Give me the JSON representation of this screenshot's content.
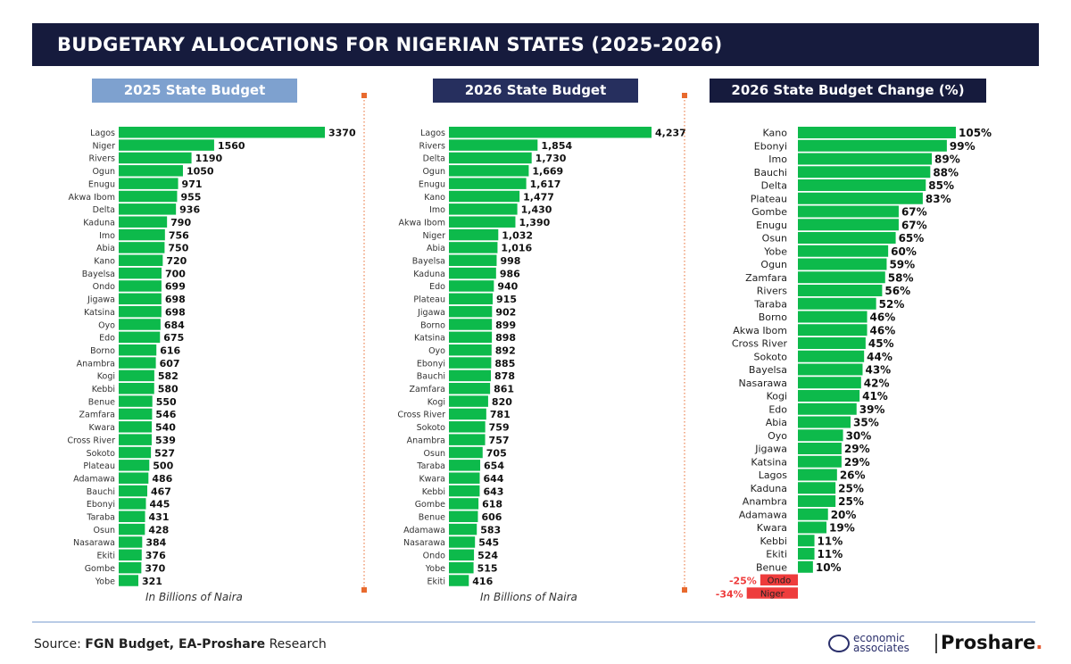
{
  "title": "BUDGETARY ALLOCATIONS FOR NIGERIAN STATES (2025-2026)",
  "source_prefix": "Source: ",
  "source_bold": "FGN Budget, EA-Proshare",
  "source_suffix": " Research",
  "logos": {
    "ea_line1": "economic",
    "ea_line2": "associates",
    "proshare": "Proshare",
    "proshare_dot": "."
  },
  "colors": {
    "bar": "#0dba4b",
    "negative": "#ee3c3c",
    "title_bg": "#161b3d",
    "head_2025": "#7ea1cf",
    "head_2026": "#262f5e",
    "divider": "#e86a2e"
  },
  "chart_data": [
    {
      "type": "bar",
      "orientation": "horizontal",
      "title": "2025 State Budget",
      "unit_label": "In Billions of Naira",
      "categories": [
        "Lagos",
        "Niger",
        "Rivers",
        "Ogun",
        "Enugu",
        "Akwa Ibom",
        "Delta",
        "Kaduna",
        "Imo",
        "Abia",
        "Kano",
        "Bayelsa",
        "Ondo",
        "Jigawa",
        "Katsina",
        "Oyo",
        "Edo",
        "Borno",
        "Anambra",
        "Kogi",
        "Kebbi",
        "Benue",
        "Zamfara",
        "Kwara",
        "Cross River",
        "Sokoto",
        "Plateau",
        "Adamawa",
        "Bauchi",
        "Ebonyi",
        "Taraba",
        "Osun",
        "Nasarawa",
        "Ekiti",
        "Gombe",
        "Yobe"
      ],
      "values": [
        3370,
        1560,
        1190,
        1050,
        971,
        955,
        936,
        790,
        756,
        750,
        720,
        700,
        699,
        698,
        698,
        684,
        675,
        616,
        607,
        582,
        580,
        550,
        546,
        540,
        539,
        527,
        500,
        486,
        467,
        445,
        431,
        428,
        384,
        376,
        370,
        321
      ],
      "labels": [
        "3370",
        "1560",
        "1190",
        "1050",
        "971",
        "955",
        "936",
        "790",
        "756",
        "750",
        "720",
        "700",
        "699",
        "698",
        "698",
        "684",
        "675",
        "616",
        "607",
        "582",
        "580",
        "550",
        "546",
        "540",
        "539",
        "527",
        "500",
        "486",
        "467",
        "445",
        "431",
        "428",
        "384",
        "376",
        "370",
        "321"
      ]
    },
    {
      "type": "bar",
      "orientation": "horizontal",
      "title": "2026 State Budget",
      "unit_label": "In Billions of Naira",
      "categories": [
        "Lagos",
        "Rivers",
        "Delta",
        "Ogun",
        "Enugu",
        "Kano",
        "Imo",
        "Akwa Ibom",
        "Niger",
        "Abia",
        "Bayelsa",
        "Kaduna",
        "Edo",
        "Plateau",
        "Jigawa",
        "Borno",
        "Katsina",
        "Oyo",
        "Ebonyi",
        "Bauchi",
        "Zamfara",
        "Kogi",
        "Cross River",
        "Sokoto",
        "Anambra",
        "Osun",
        "Taraba",
        "Kwara",
        "Kebbi",
        "Gombe",
        "Benue",
        "Adamawa",
        "Nasarawa",
        "Ondo",
        "Yobe",
        "Ekiti"
      ],
      "values": [
        4237,
        1854,
        1730,
        1669,
        1617,
        1477,
        1430,
        1390,
        1032,
        1016,
        998,
        986,
        940,
        915,
        902,
        899,
        898,
        892,
        885,
        878,
        861,
        820,
        781,
        759,
        757,
        705,
        654,
        644,
        643,
        618,
        606,
        583,
        545,
        524,
        515,
        416
      ],
      "labels": [
        "4,237",
        "1,854",
        "1,730",
        "1,669",
        "1,617",
        "1,477",
        "1,430",
        "1,390",
        "1,032",
        "1,016",
        "998",
        "986",
        "940",
        "915",
        "902",
        "899",
        "898",
        "892",
        "885",
        "878",
        "861",
        "820",
        "781",
        "759",
        "757",
        "705",
        "654",
        "644",
        "643",
        "618",
        "606",
        "583",
        "545",
        "524",
        "515",
        "416"
      ]
    },
    {
      "type": "bar",
      "orientation": "horizontal",
      "title": "2026 State Budget Change (%)",
      "categories": [
        "Kano",
        "Ebonyi",
        "Imo",
        "Bauchi",
        "Delta",
        "Plateau",
        "Gombe",
        "Enugu",
        "Osun",
        "Yobe",
        "Ogun",
        "Zamfara",
        "Rivers",
        "Taraba",
        "Borno",
        "Akwa Ibom",
        "Cross River",
        "Sokoto",
        "Bayelsa",
        "Nasarawa",
        "Kogi",
        "Edo",
        "Abia",
        "Oyo",
        "Jigawa",
        "Katsina",
        "Lagos",
        "Kaduna",
        "Anambra",
        "Adamawa",
        "Kwara",
        "Kebbi",
        "Ekiti",
        "Benue",
        "Ondo",
        "Niger"
      ],
      "values": [
        105,
        99,
        89,
        88,
        85,
        83,
        67,
        67,
        65,
        60,
        59,
        58,
        56,
        52,
        46,
        46,
        45,
        44,
        43,
        42,
        41,
        39,
        35,
        30,
        29,
        29,
        26,
        25,
        25,
        20,
        19,
        11,
        11,
        10,
        -25,
        -34
      ],
      "labels": [
        "105%",
        "99%",
        "89%",
        "88%",
        "85%",
        "83%",
        "67%",
        "67%",
        "65%",
        "60%",
        "59%",
        "58%",
        "56%",
        "52%",
        "46%",
        "46%",
        "45%",
        "44%",
        "43%",
        "42%",
        "41%",
        "39%",
        "35%",
        "30%",
        "29%",
        "29%",
        "26%",
        "25%",
        "25%",
        "20%",
        "19%",
        "11%",
        "11%",
        "10%",
        "-25%",
        "-34%"
      ]
    }
  ]
}
